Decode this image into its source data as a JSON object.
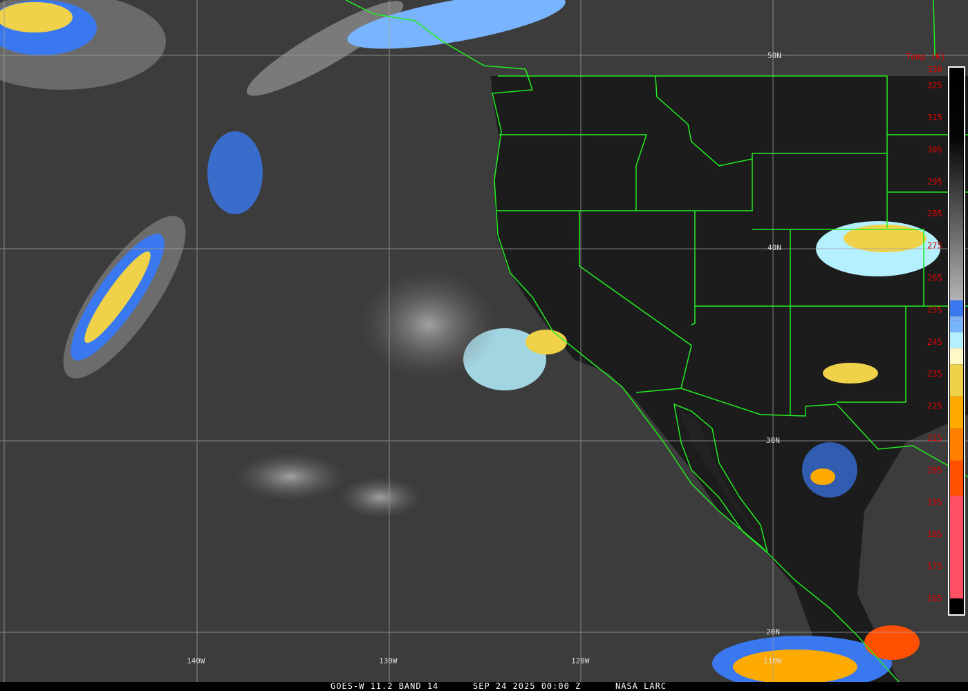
{
  "caption": {
    "satellite": "GOES-W 11.2 BAND 14",
    "datetime": "SEP 24 2025 00:00 Z",
    "source": "NASA LARC"
  },
  "grid": {
    "lat_labels": [
      "50N",
      "40N",
      "30N",
      "20N"
    ],
    "lon_labels": [
      "140W",
      "130W",
      "120W",
      "110W"
    ]
  },
  "colorbar": {
    "title": "Temp (K)",
    "ticks": [
      "330",
      "325",
      "315",
      "305",
      "295",
      "285",
      "275",
      "265",
      "255",
      "245",
      "235",
      "225",
      "215",
      "205",
      "195",
      "185",
      "175",
      "165"
    ],
    "range_k": [
      165,
      330
    ],
    "color_stops": [
      {
        "from": 330,
        "to": 258,
        "color": "gradient #000000 to #b4b4b4"
      },
      {
        "from": 258,
        "to": 253,
        "color": "#3a78f0"
      },
      {
        "from": 253,
        "to": 251.5,
        "color": "#80b0f0"
      },
      {
        "from": 251.5,
        "to": 248,
        "color": "#78b4ff"
      },
      {
        "from": 248,
        "to": 243,
        "color": "#b4f0ff"
      },
      {
        "from": 243,
        "to": 238,
        "color": "#fff8c8"
      },
      {
        "from": 238,
        "to": 228,
        "color": "#f0d24a"
      },
      {
        "from": 228,
        "to": 218,
        "color": "#ffaa00"
      },
      {
        "from": 218,
        "to": 208,
        "color": "#ff8000"
      },
      {
        "from": 208,
        "to": 197,
        "color": "#ff5000"
      },
      {
        "from": 197,
        "to": 165,
        "color": "#ff5064"
      }
    ]
  },
  "colors": {
    "borders": "#22ee22",
    "grid": "#a0a0a0",
    "tick_text": "#e00000",
    "background": "#3c3c3c"
  }
}
